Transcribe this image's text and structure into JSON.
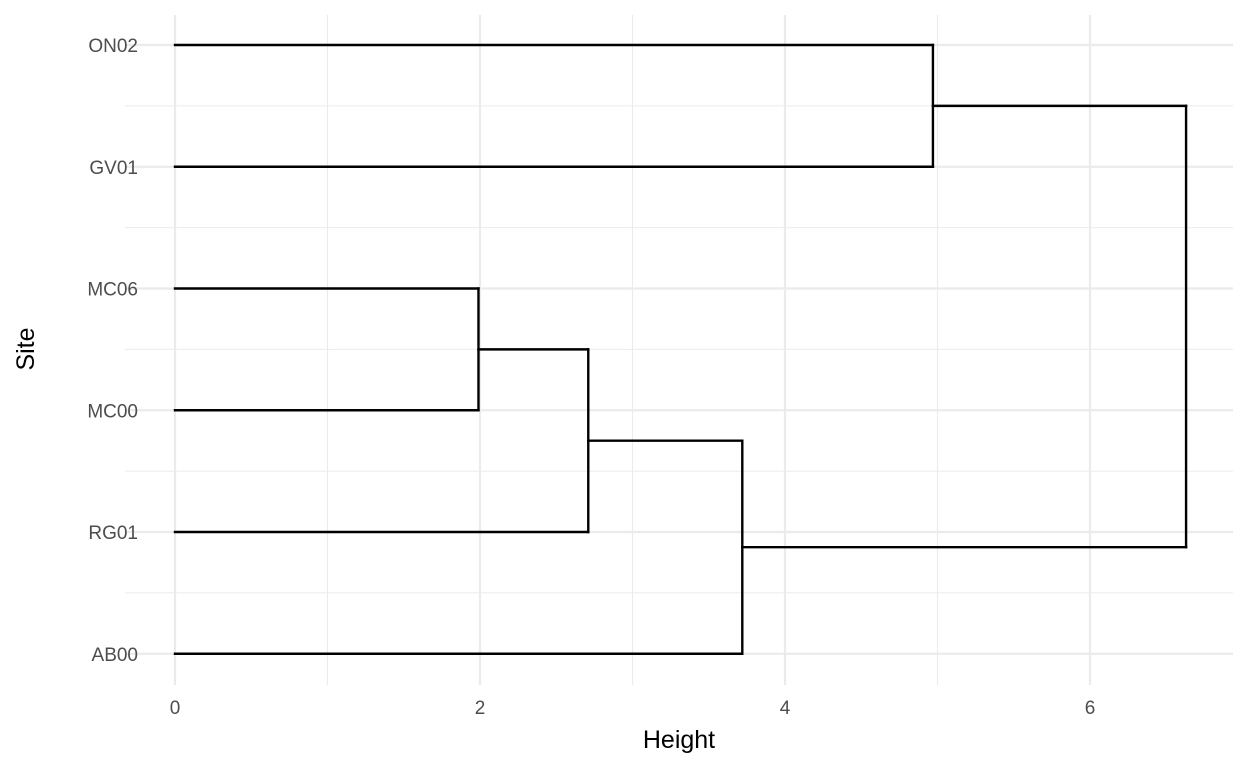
{
  "chart_data": {
    "type": "dendrogram",
    "title": "",
    "xlabel": "Height",
    "ylabel": "Site",
    "xlim": [
      -0.33,
      6.96
    ],
    "x_ticks": [
      0,
      2,
      4,
      6
    ],
    "x_tick_labels": [
      "0",
      "2",
      "4",
      "6"
    ],
    "leaves": [
      "ON02",
      "GV01",
      "MC06",
      "MC00",
      "RG01",
      "AB00"
    ],
    "merges": [
      {
        "left": "MC06",
        "right": "MC00",
        "height": 1.99
      },
      {
        "left": "MC06+MC00",
        "right": "RG01",
        "height": 2.71
      },
      {
        "left": "MC06+MC00+RG01",
        "right": "AB00",
        "height": 3.72
      },
      {
        "left": "ON02",
        "right": "GV01",
        "height": 4.97
      },
      {
        "left": "ON02+GV01",
        "right": "MC06+MC00+RG01+AB00",
        "height": 6.63
      }
    ],
    "grid": true,
    "legend": "none",
    "line_color": "#000000"
  }
}
